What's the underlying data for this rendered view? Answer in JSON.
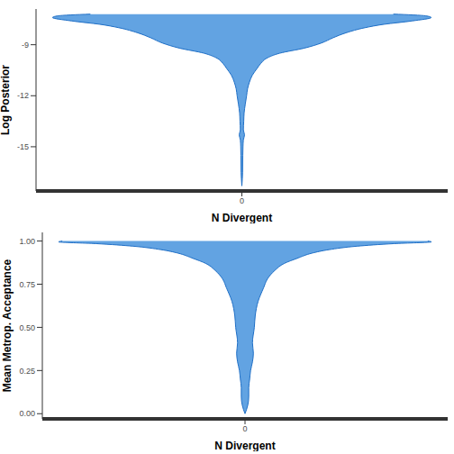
{
  "chart_data": [
    {
      "type": "violin",
      "x_label": "N Divergent",
      "y_label": "Log Posterior",
      "categories": [
        "0"
      ],
      "color": "#62a3e2",
      "ylim": [
        -17.6,
        -6.9
      ],
      "yticks": [
        -15,
        -12,
        -9
      ],
      "y": [
        -7.2,
        -7.3,
        -7.4,
        -7.6,
        -7.8,
        -8.0,
        -8.3,
        -8.6,
        -8.9,
        -9.2,
        -9.5,
        -9.8,
        -10.1,
        -10.4,
        -10.8,
        -11.2,
        -11.6,
        -12,
        -12.5,
        -13,
        -13.5,
        -14,
        -14.3,
        -14.6,
        -15,
        -15.5,
        -16.5,
        -17.3
      ],
      "density": [
        0.8,
        0.97,
        1.0,
        0.9,
        0.75,
        0.65,
        0.55,
        0.48,
        0.42,
        0.33,
        0.2,
        0.13,
        0.1,
        0.08,
        0.055,
        0.04,
        0.03,
        0.025,
        0.018,
        0.012,
        0.01,
        0.008,
        0.014,
        0.008,
        0.006,
        0.005,
        0.004,
        0
      ]
    },
    {
      "type": "violin",
      "x_label": "N Divergent",
      "y_label": "Mean Metrop. Acceptance",
      "categories": [
        "0"
      ],
      "color": "#62a3e2",
      "ylim": [
        -0.03,
        1.05
      ],
      "yticks": [
        {
          "value": 0,
          "label": "0.00"
        },
        {
          "value": 0.25,
          "label": "0.25"
        },
        {
          "value": 0.5,
          "label": "0.50"
        },
        {
          "value": 0.75,
          "label": "0.75"
        },
        {
          "value": 1,
          "label": "1.00"
        }
      ],
      "y": [
        1.0,
        0.995,
        0.985,
        0.97,
        0.95,
        0.93,
        0.9,
        0.87,
        0.83,
        0.78,
        0.73,
        0.65,
        0.57,
        0.5,
        0.41,
        0.35,
        0.3,
        0.25,
        0.2,
        0.15,
        0.1,
        0.05,
        0.0
      ],
      "density": [
        0.98,
        1.0,
        0.8,
        0.6,
        0.45,
        0.36,
        0.28,
        0.21,
        0.16,
        0.12,
        0.1,
        0.07,
        0.055,
        0.05,
        0.04,
        0.045,
        0.04,
        0.03,
        0.025,
        0.02,
        0.02,
        0.015,
        0
      ]
    }
  ]
}
